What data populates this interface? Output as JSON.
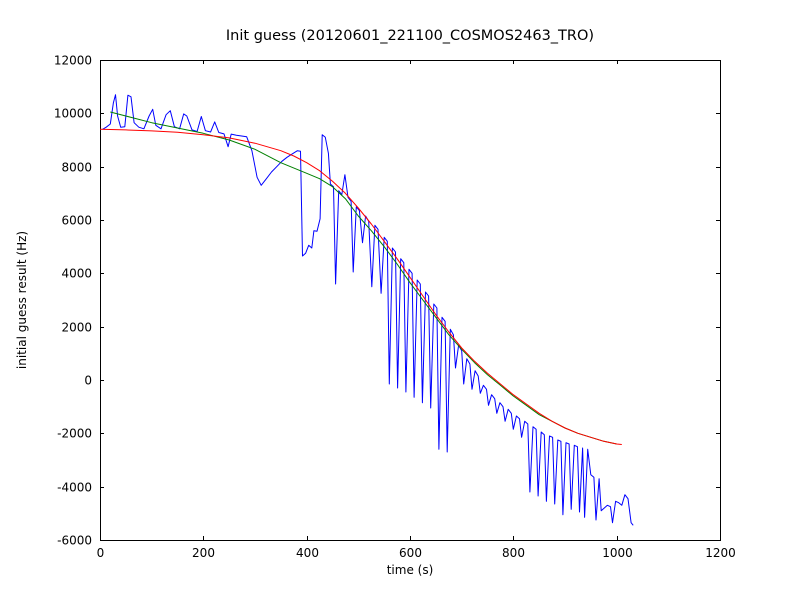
{
  "figure": {
    "background": "#ffffff",
    "frame_color": "#000000",
    "tick_color": "#000000",
    "text_color": "#000000"
  },
  "chart_data": {
    "type": "line",
    "title": "Init guess (20120601_221100_COSMOS2463_TRO)",
    "xlabel": "time (s)",
    "ylabel": "initial guess result (Hz)",
    "xlim": [
      0,
      1200
    ],
    "ylim": [
      -6000,
      12000
    ],
    "xticks": [
      0,
      200,
      400,
      600,
      800,
      1000,
      1200
    ],
    "yticks": [
      -6000,
      -4000,
      -2000,
      0,
      2000,
      4000,
      6000,
      8000,
      10000,
      12000
    ],
    "grid": false,
    "legend": "none",
    "series": [
      {
        "name": "blue-data",
        "color": "#0000ff",
        "points": [
          [
            5,
            9400
          ],
          [
            12,
            9480
          ],
          [
            20,
            9600
          ],
          [
            26,
            10400
          ],
          [
            30,
            10700
          ],
          [
            34,
            9900
          ],
          [
            40,
            9480
          ],
          [
            48,
            9500
          ],
          [
            54,
            10680
          ],
          [
            60,
            10620
          ],
          [
            66,
            9650
          ],
          [
            75,
            9480
          ],
          [
            85,
            9420
          ],
          [
            95,
            9900
          ],
          [
            102,
            10150
          ],
          [
            108,
            9550
          ],
          [
            118,
            9420
          ],
          [
            128,
            9950
          ],
          [
            136,
            10100
          ],
          [
            144,
            9500
          ],
          [
            154,
            9420
          ],
          [
            162,
            9980
          ],
          [
            168,
            9900
          ],
          [
            178,
            9380
          ],
          [
            188,
            9320
          ],
          [
            196,
            9880
          ],
          [
            204,
            9350
          ],
          [
            214,
            9300
          ],
          [
            222,
            9680
          ],
          [
            230,
            9280
          ],
          [
            240,
            9230
          ],
          [
            248,
            8750
          ],
          [
            254,
            9220
          ],
          [
            264,
            9180
          ],
          [
            274,
            9150
          ],
          [
            284,
            9120
          ],
          [
            294,
            8600
          ],
          [
            304,
            7600
          ],
          [
            312,
            7300
          ],
          [
            322,
            7550
          ],
          [
            332,
            7800
          ],
          [
            342,
            8000
          ],
          [
            352,
            8200
          ],
          [
            362,
            8350
          ],
          [
            372,
            8480
          ],
          [
            382,
            8600
          ],
          [
            388,
            8580
          ],
          [
            392,
            4650
          ],
          [
            398,
            4750
          ],
          [
            404,
            5050
          ],
          [
            410,
            4950
          ],
          [
            414,
            5600
          ],
          [
            420,
            5580
          ],
          [
            426,
            6050
          ],
          [
            430,
            9200
          ],
          [
            436,
            9100
          ],
          [
            442,
            8500
          ],
          [
            446,
            7350
          ],
          [
            452,
            7250
          ],
          [
            456,
            3600
          ],
          [
            462,
            7100
          ],
          [
            468,
            6950
          ],
          [
            474,
            7700
          ],
          [
            480,
            6850
          ],
          [
            486,
            6700
          ],
          [
            490,
            4050
          ],
          [
            496,
            6500
          ],
          [
            502,
            6350
          ],
          [
            508,
            5150
          ],
          [
            514,
            6150
          ],
          [
            520,
            5950
          ],
          [
            526,
            3500
          ],
          [
            532,
            5800
          ],
          [
            538,
            5650
          ],
          [
            544,
            3250
          ],
          [
            550,
            5350
          ],
          [
            556,
            5200
          ],
          [
            560,
            -150
          ],
          [
            566,
            4950
          ],
          [
            572,
            4800
          ],
          [
            576,
            -300
          ],
          [
            582,
            4550
          ],
          [
            588,
            4400
          ],
          [
            592,
            -450
          ],
          [
            598,
            4150
          ],
          [
            604,
            4000
          ],
          [
            608,
            -650
          ],
          [
            614,
            3750
          ],
          [
            620,
            3600
          ],
          [
            624,
            -850
          ],
          [
            630,
            3300
          ],
          [
            636,
            3150
          ],
          [
            640,
            -1050
          ],
          [
            646,
            2850
          ],
          [
            652,
            2700
          ],
          [
            656,
            -2600
          ],
          [
            662,
            2350
          ],
          [
            668,
            2200
          ],
          [
            672,
            -2700
          ],
          [
            678,
            1900
          ],
          [
            684,
            1700
          ],
          [
            688,
            450
          ],
          [
            694,
            1300
          ],
          [
            700,
            1100
          ],
          [
            704,
            -150
          ],
          [
            710,
            800
          ],
          [
            716,
            600
          ],
          [
            720,
            -350
          ],
          [
            726,
            350
          ],
          [
            732,
            150
          ],
          [
            736,
            -500
          ],
          [
            742,
            -200
          ],
          [
            748,
            -350
          ],
          [
            752,
            -950
          ],
          [
            758,
            -550
          ],
          [
            764,
            -700
          ],
          [
            768,
            -1250
          ],
          [
            774,
            -850
          ],
          [
            780,
            -1000
          ],
          [
            784,
            -1550
          ],
          [
            790,
            -1100
          ],
          [
            796,
            -1250
          ],
          [
            800,
            -1850
          ],
          [
            806,
            -1350
          ],
          [
            812,
            -1450
          ],
          [
            816,
            -2150
          ],
          [
            822,
            -1550
          ],
          [
            828,
            -1650
          ],
          [
            832,
            -4200
          ],
          [
            838,
            -1750
          ],
          [
            844,
            -1850
          ],
          [
            848,
            -4350
          ],
          [
            854,
            -1950
          ],
          [
            860,
            -2050
          ],
          [
            864,
            -4550
          ],
          [
            870,
            -2100
          ],
          [
            876,
            -2150
          ],
          [
            880,
            -4650
          ],
          [
            886,
            -2250
          ],
          [
            892,
            -2300
          ],
          [
            896,
            -5050
          ],
          [
            902,
            -2350
          ],
          [
            908,
            -2400
          ],
          [
            912,
            -4850
          ],
          [
            918,
            -2450
          ],
          [
            924,
            -2500
          ],
          [
            928,
            -4950
          ],
          [
            934,
            -2550
          ],
          [
            938,
            -5150
          ],
          [
            944,
            -2600
          ],
          [
            950,
            -3550
          ],
          [
            956,
            -3650
          ],
          [
            960,
            -5250
          ],
          [
            966,
            -3700
          ],
          [
            970,
            -4900
          ],
          [
            976,
            -4800
          ],
          [
            982,
            -4700
          ],
          [
            988,
            -4750
          ],
          [
            992,
            -5350
          ],
          [
            998,
            -4550
          ],
          [
            1004,
            -4600
          ],
          [
            1010,
            -4700
          ],
          [
            1016,
            -4300
          ],
          [
            1022,
            -4450
          ],
          [
            1028,
            -5350
          ],
          [
            1032,
            -5450
          ]
        ]
      },
      {
        "name": "green-fit",
        "color": "#008000",
        "points": [
          [
            20,
            10050
          ],
          [
            50,
            9900
          ],
          [
            100,
            9650
          ],
          [
            150,
            9450
          ],
          [
            200,
            9250
          ],
          [
            250,
            9000
          ],
          [
            300,
            8650
          ],
          [
            350,
            8150
          ],
          [
            400,
            7750
          ],
          [
            425,
            7550
          ],
          [
            450,
            7250
          ],
          [
            475,
            6800
          ],
          [
            500,
            6150
          ],
          [
            525,
            5600
          ],
          [
            550,
            5000
          ],
          [
            575,
            4350
          ],
          [
            600,
            3650
          ],
          [
            625,
            3000
          ],
          [
            650,
            2350
          ],
          [
            675,
            1700
          ],
          [
            700,
            1150
          ],
          [
            725,
            650
          ],
          [
            750,
            200
          ],
          [
            775,
            -200
          ],
          [
            800,
            -600
          ],
          [
            825,
            -950
          ],
          [
            850,
            -1300
          ],
          [
            875,
            -1550
          ],
          [
            900,
            -1800
          ],
          [
            925,
            -2000
          ],
          [
            950,
            -2150
          ],
          [
            975,
            -2300
          ],
          [
            1000,
            -2400
          ]
        ]
      },
      {
        "name": "red-fit",
        "color": "#ff0000",
        "points": [
          [
            0,
            9400
          ],
          [
            50,
            9380
          ],
          [
            100,
            9340
          ],
          [
            150,
            9290
          ],
          [
            200,
            9200
          ],
          [
            250,
            9080
          ],
          [
            300,
            8880
          ],
          [
            350,
            8600
          ],
          [
            375,
            8400
          ],
          [
            400,
            8150
          ],
          [
            425,
            7850
          ],
          [
            450,
            7450
          ],
          [
            475,
            7000
          ],
          [
            500,
            6450
          ],
          [
            525,
            5850
          ],
          [
            550,
            5200
          ],
          [
            575,
            4550
          ],
          [
            600,
            3850
          ],
          [
            625,
            3150
          ],
          [
            650,
            2450
          ],
          [
            675,
            1800
          ],
          [
            700,
            1200
          ],
          [
            725,
            700
          ],
          [
            750,
            250
          ],
          [
            775,
            -150
          ],
          [
            800,
            -550
          ],
          [
            825,
            -900
          ],
          [
            850,
            -1250
          ],
          [
            875,
            -1550
          ],
          [
            900,
            -1800
          ],
          [
            925,
            -2000
          ],
          [
            950,
            -2150
          ],
          [
            975,
            -2300
          ],
          [
            1000,
            -2400
          ],
          [
            1010,
            -2420
          ]
        ]
      }
    ]
  }
}
